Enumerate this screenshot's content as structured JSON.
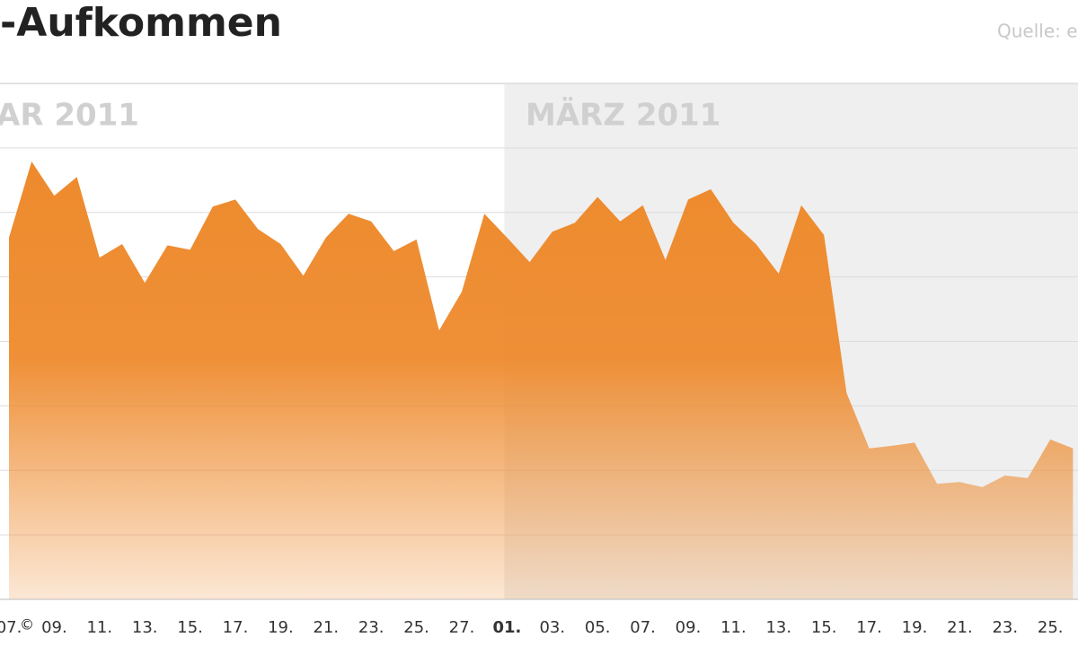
{
  "chart_data": {
    "type": "area",
    "title": "-Aufkommen",
    "source": "Quelle: e",
    "period_labels": [
      "AR 2011",
      "MÄRZ 2011"
    ],
    "copyright": "©",
    "categories": [
      "07.",
      null,
      "09.",
      null,
      "11.",
      null,
      "13.",
      null,
      "15.",
      null,
      "17.",
      null,
      "19.",
      null,
      "21.",
      null,
      "23.",
      null,
      "25.",
      null,
      "27.",
      null,
      "01.",
      null,
      "03.",
      null,
      "05.",
      null,
      "07.",
      null,
      "09.",
      null,
      "11.",
      null,
      "13.",
      null,
      "15.",
      null,
      "17.",
      null,
      "19.",
      null,
      "21.",
      null,
      "23.",
      null,
      "25.",
      null
    ],
    "values": [
      5.61,
      6.79,
      6.26,
      6.55,
      5.3,
      5.51,
      4.91,
      5.49,
      5.42,
      6.09,
      6.2,
      5.74,
      5.51,
      5.02,
      5.61,
      5.98,
      5.86,
      5.4,
      5.58,
      4.17,
      4.77,
      5.98,
      5.61,
      5.23,
      5.7,
      5.84,
      6.24,
      5.86,
      6.11,
      5.26,
      6.2,
      6.36,
      5.84,
      5.51,
      5.05,
      6.11,
      5.65,
      3.2,
      2.34,
      2.38,
      2.43,
      1.79,
      1.82,
      1.74,
      1.92,
      1.88,
      2.48,
      2.34
    ],
    "color": "#ee8a2d",
    "ylim": [
      0,
      8
    ],
    "yticks": [
      1,
      2,
      3,
      4,
      5,
      6,
      7
    ],
    "grid": true
  }
}
